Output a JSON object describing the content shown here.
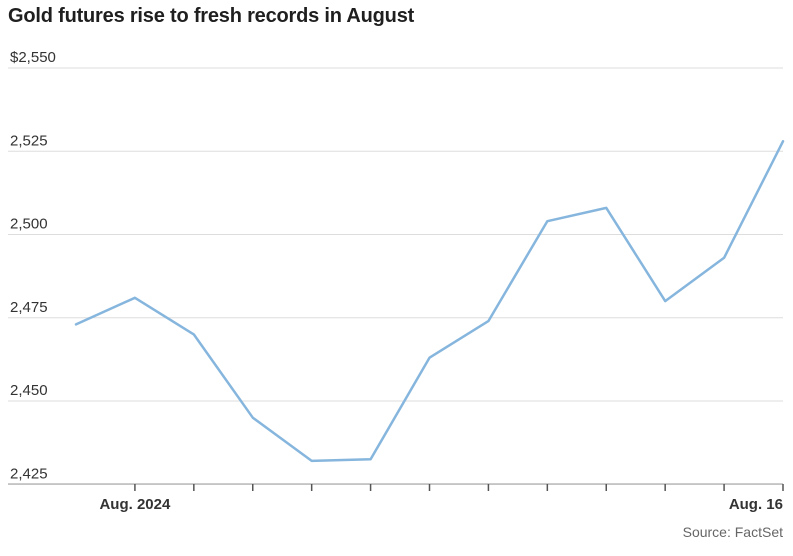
{
  "title": "Gold futures rise to fresh records in August",
  "source": "Source: FactSet",
  "colors": {
    "line": "#86b6dd",
    "grid": "#dddddd",
    "axis": "#999999"
  },
  "chart_data": {
    "type": "line",
    "title": "Gold futures rise to fresh records in August",
    "xlabel": "",
    "ylabel": "",
    "ylim": [
      2415,
      2550
    ],
    "y_ticks": [
      "$2,550",
      "2,525",
      "2,500",
      "2,475",
      "2,450",
      "2,425"
    ],
    "y_tick_values": [
      2550,
      2525,
      2500,
      2475,
      2450,
      2425
    ],
    "x_labels": [
      {
        "index": 1,
        "label": "Aug. 2024"
      },
      {
        "index": 12,
        "label": "Aug. 16"
      }
    ],
    "grid": true,
    "series": [
      {
        "values": [
          2473,
          2481,
          2470,
          2445,
          2432,
          2432.5,
          2463,
          2474,
          2504,
          2508,
          2480,
          2493,
          2528
        ]
      }
    ]
  }
}
